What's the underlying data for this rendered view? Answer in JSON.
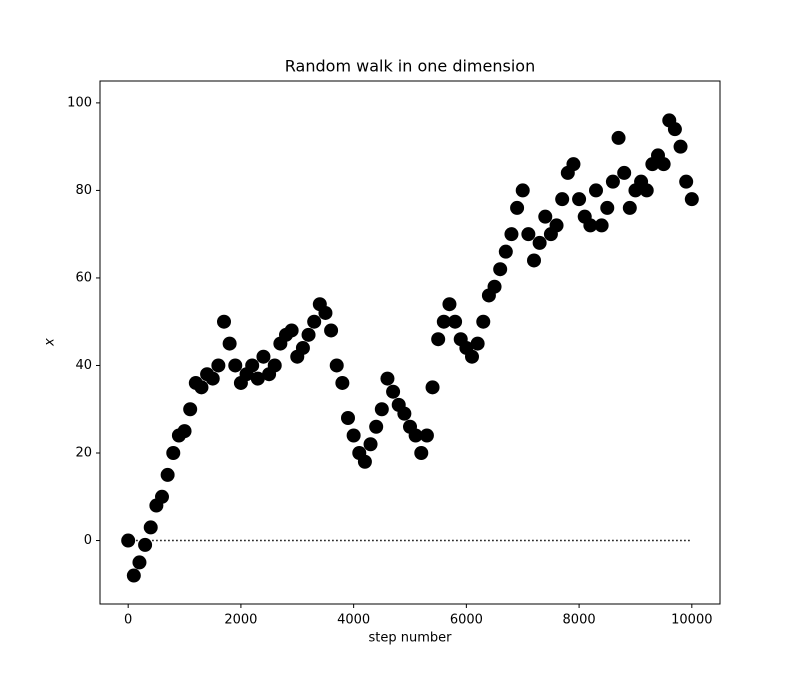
{
  "chart_data": {
    "type": "scatter",
    "title": "Random walk in one dimension",
    "x_label": "step number",
    "y_label": "x",
    "x": [
      0,
      100,
      200,
      300,
      400,
      500,
      600,
      700,
      800,
      900,
      1000,
      1100,
      1200,
      1300,
      1400,
      1500,
      1600,
      1700,
      1800,
      1900,
      2000,
      2100,
      2200,
      2300,
      2400,
      2500,
      2600,
      2700,
      2800,
      2900,
      3000,
      3100,
      3200,
      3300,
      3400,
      3500,
      3600,
      3700,
      3800,
      3900,
      4000,
      4100,
      4200,
      4300,
      4400,
      4500,
      4600,
      4700,
      4800,
      4900,
      5000,
      5100,
      5200,
      5300,
      5400,
      5500,
      5600,
      5700,
      5800,
      5900,
      6000,
      6100,
      6200,
      6300,
      6400,
      6500,
      6600,
      6700,
      6800,
      6900,
      7000,
      7100,
      7200,
      7300,
      7400,
      7500,
      7600,
      7700,
      7800,
      7900,
      8000,
      8100,
      8200,
      8300,
      8400,
      8500,
      8600,
      8700,
      8800,
      8900,
      9000,
      9100,
      9200,
      9300,
      9400,
      9500,
      9600,
      9700,
      9800,
      9900,
      10000
    ],
    "values": [
      0,
      -8,
      -5,
      -1,
      3,
      8,
      10,
      15,
      20,
      24,
      25,
      30,
      36,
      35,
      38,
      37,
      40,
      50,
      45,
      40,
      36,
      38,
      40,
      37,
      42,
      38,
      40,
      45,
      47,
      48,
      42,
      44,
      47,
      50,
      54,
      52,
      48,
      40,
      36,
      28,
      24,
      20,
      18,
      22,
      26,
      30,
      37,
      34,
      31,
      29,
      26,
      24,
      20,
      24,
      35,
      46,
      50,
      54,
      50,
      46,
      44,
      42,
      45,
      50,
      56,
      58,
      62,
      66,
      70,
      76,
      80,
      70,
      64,
      68,
      74,
      70,
      72,
      78,
      84,
      86,
      78,
      74,
      72,
      80,
      72,
      76,
      82,
      92,
      84,
      76,
      80,
      82,
      80,
      86,
      88,
      86,
      96,
      94,
      90,
      82,
      78
    ],
    "color": "#000000",
    "hline": {
      "y": 0,
      "xmin": 0,
      "xmax": 10000,
      "style": "dotted"
    },
    "xlim": [
      -500,
      10500
    ],
    "ylim": [
      -14.5,
      105
    ],
    "xticks": [
      0,
      2000,
      4000,
      6000,
      8000,
      10000
    ],
    "yticks": [
      0,
      20,
      40,
      60,
      80,
      100
    ]
  }
}
